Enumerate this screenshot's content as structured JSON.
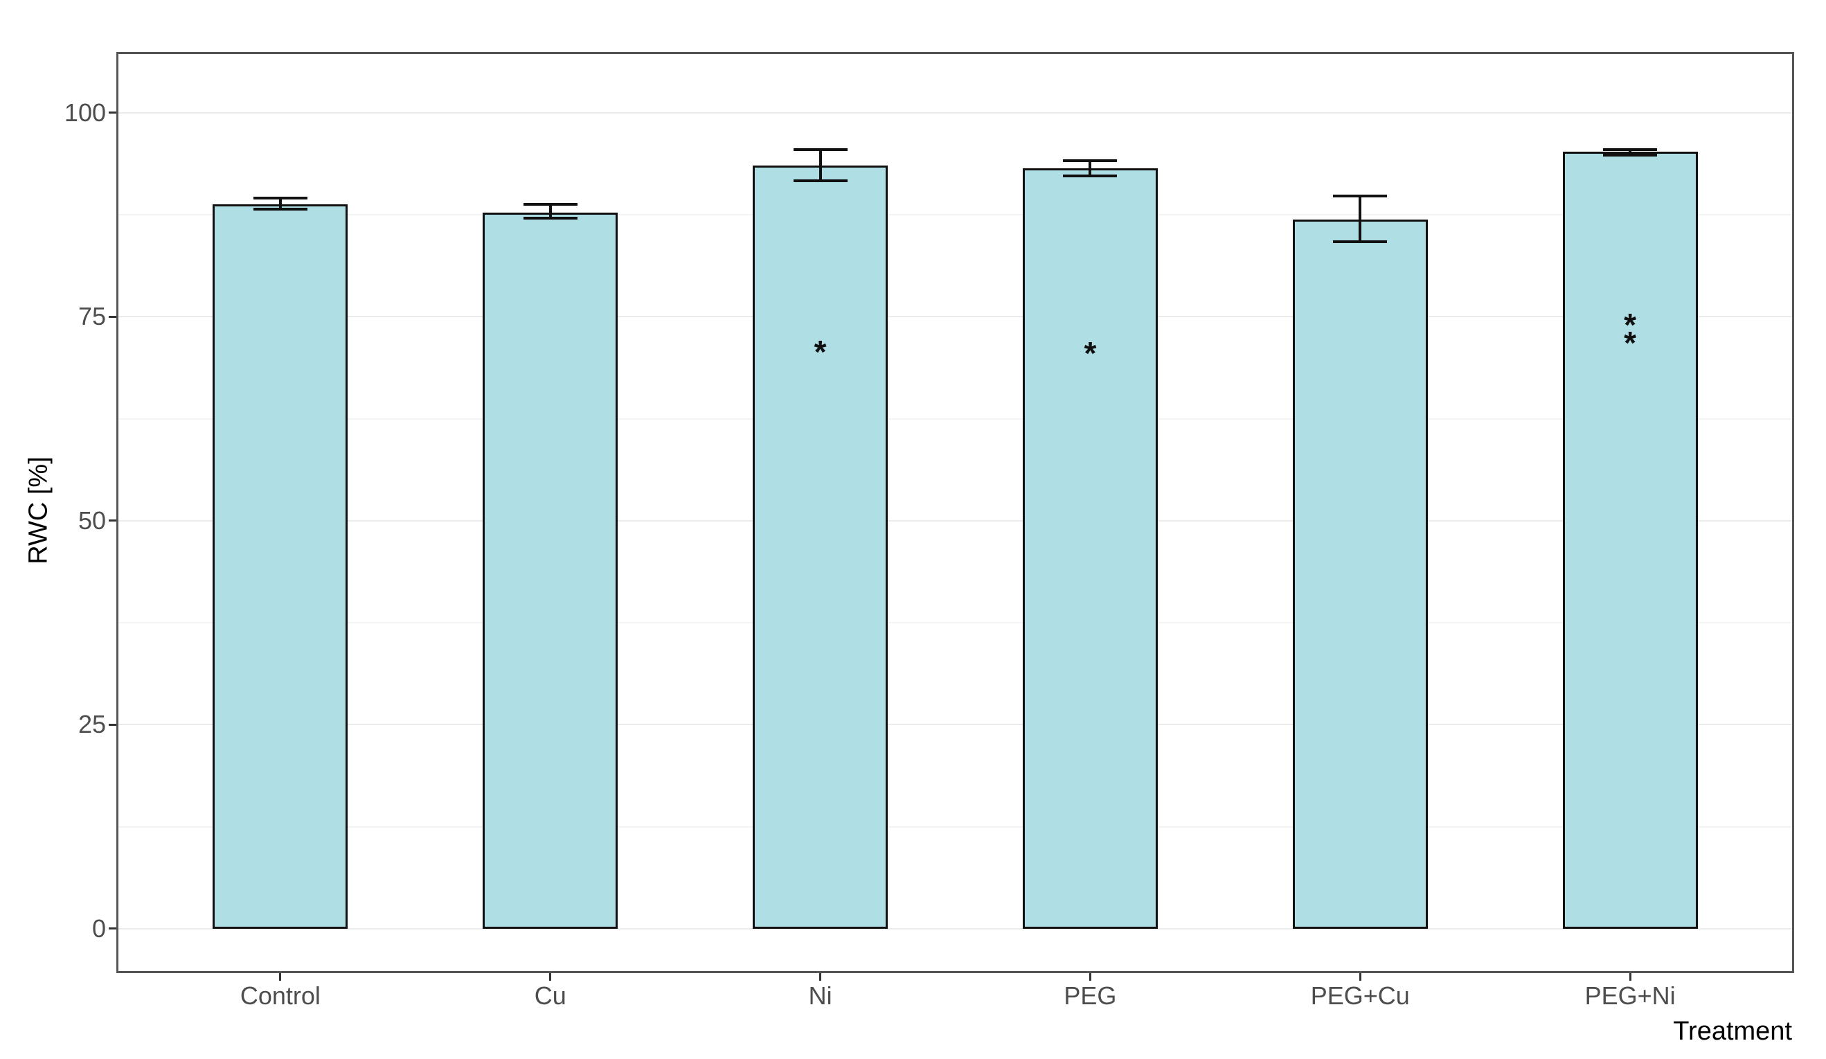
{
  "chart_data": {
    "type": "bar",
    "title": "",
    "xlabel": "Treatment",
    "ylabel": "RWC [%]",
    "categories": [
      "Control",
      "Cu",
      "Ni",
      "PEG",
      "PEG+Cu",
      "PEG+Ni"
    ],
    "values": [
      88.8,
      87.8,
      93.5,
      93.2,
      86.9,
      95.2
    ],
    "error_low": [
      88.2,
      87.1,
      91.7,
      92.3,
      84.2,
      94.8
    ],
    "error_high": [
      89.5,
      88.8,
      95.5,
      94.1,
      89.8,
      95.5
    ],
    "yticks": [
      0,
      25,
      50,
      75,
      100
    ],
    "yticks_minor": [
      12.5,
      37.5,
      62.5,
      87.5
    ],
    "ylim": [
      -5.2,
      107.2
    ],
    "grid": true,
    "legend": "none",
    "annotations": [
      {
        "category": "Ni",
        "label": "*",
        "y": 71.3
      },
      {
        "category": "PEG",
        "label": "*",
        "y": 71.1
      },
      {
        "category": "PEG+Ni",
        "label": "*",
        "y": 74.6
      },
      {
        "category": "PEG+Ni",
        "label": "*",
        "y": 72.4
      }
    ],
    "colors": {
      "bar_fill": "#AFDEE5",
      "bar_border": "#101010",
      "errorbar": "#101010",
      "panel_border": "#555555",
      "grid_major": "#EBEBEB",
      "grid_minor": "#F4F4F4",
      "tick_mark": "#333333",
      "tick_label": "#4D4D4D",
      "axis_title": "#000000",
      "background": "#FFFFFF"
    }
  }
}
